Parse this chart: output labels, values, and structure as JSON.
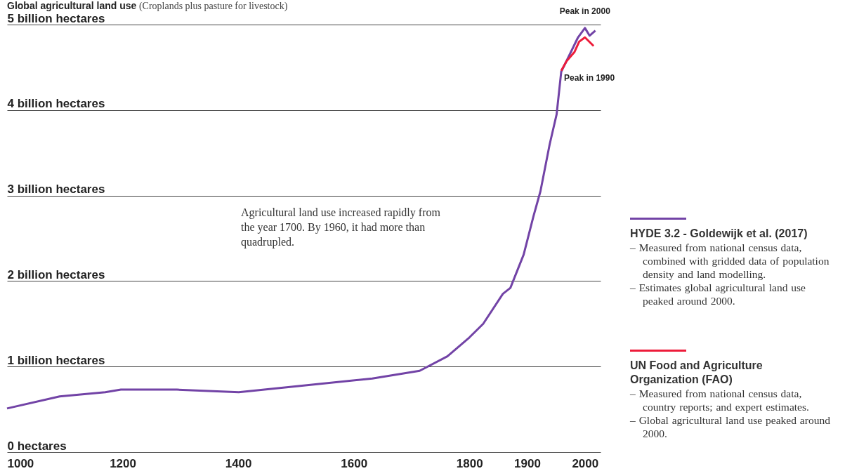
{
  "chart_data": {
    "type": "line",
    "title": "Global agricultural land use",
    "subtitle": "(Croplands plus pasture for livestock)",
    "x": [
      1000,
      1091,
      1170,
      1197,
      1294,
      1401,
      1632,
      1714,
      1762,
      1800,
      1824,
      1858,
      1871,
      1894,
      1911,
      1923,
      1939,
      1951,
      1959,
      1970,
      1988,
      2000,
      2008,
      2018
    ],
    "series": [
      {
        "name": "HYDE 3.2 - Goldewijk et al. (2017)",
        "color": "#7243a6",
        "values": [
          0.51,
          0.65,
          0.7,
          0.73,
          0.73,
          0.7,
          0.86,
          0.95,
          1.12,
          1.34,
          1.5,
          1.85,
          1.92,
          2.31,
          2.76,
          3.05,
          3.6,
          3.95,
          4.45,
          4.6,
          4.85,
          4.96,
          4.87,
          4.93
        ]
      },
      {
        "name": "UN Food and Agriculture Organization (FAO)",
        "color": "#ed1c3a",
        "x": [
          1959,
          1968,
          1982,
          1990,
          2000,
          2015
        ],
        "values": [
          4.46,
          4.57,
          4.68,
          4.8,
          4.85,
          4.75
        ]
      }
    ],
    "xlim": [
      1000,
      2027
    ],
    "xticks": [
      1000,
      1200,
      1400,
      1600,
      1800,
      1900,
      2000
    ],
    "ylim": [
      0,
      5
    ],
    "yticks": [
      {
        "value": 0,
        "label": "0 hectares"
      },
      {
        "value": 1,
        "label": "1 billion hectares"
      },
      {
        "value": 2,
        "label": "2 billion hectares"
      },
      {
        "value": 3,
        "label": "3 billion hectares"
      },
      {
        "value": 4,
        "label": "4 billion hectares"
      },
      {
        "value": 5,
        "label": "5 billion hectares"
      }
    ],
    "grid": "y",
    "legend": "right",
    "annotations": [
      {
        "text": "Peak in 2000",
        "x": 2000,
        "y": 4.96
      },
      {
        "text": "Peak in 1990",
        "x": 1959,
        "y": 4.46
      },
      "Agricultural land use increased rapidly from the year 1700. By 1960, it had more than quadrupled.",
      "– Measured from national census data, combined with gridded data of population density and land modelling.",
      "– Estimates global agricultural land use peaked around 2000.",
      "– Measured from national census data, country reports; and expert estimates.",
      "– Global agricultural land use peaked around 2000."
    ]
  }
}
